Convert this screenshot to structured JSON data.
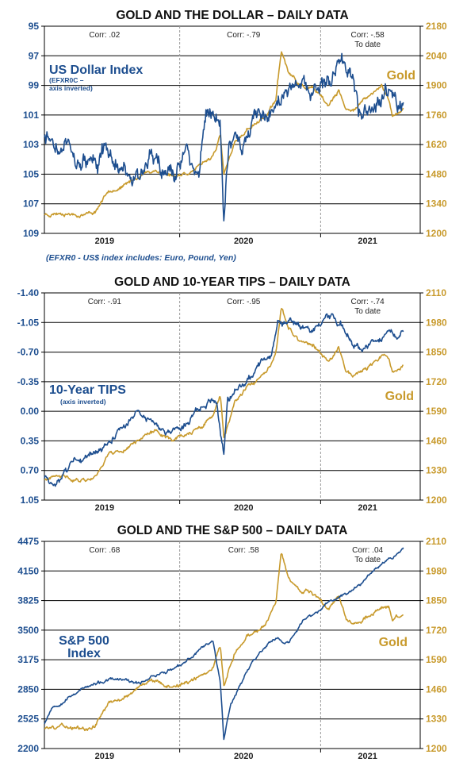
{
  "colors": {
    "blue": "#1d4e8f",
    "gold": "#c89a2c",
    "grid": "#000000",
    "divider": "#999999"
  },
  "chart_data": [
    {
      "type": "line",
      "title": "GOLD AND THE DOLLAR – DAILY DATA",
      "x_ticks": [
        "2019",
        "2020",
        "2021"
      ],
      "left_axis": {
        "ticks": [
          "95",
          "97",
          "99",
          "101",
          "103",
          "105",
          "107",
          "109"
        ],
        "min": 95,
        "max": 109,
        "inverted": true
      },
      "right_axis": {
        "ticks": [
          "2180",
          "2040",
          "1900",
          "1760",
          "1620",
          "1480",
          "1340",
          "1200"
        ],
        "min": 1200,
        "max": 2180
      },
      "correlations": [
        {
          "label": "Corr: .02",
          "sub": ""
        },
        {
          "label": "Corr: -.79",
          "sub": ""
        },
        {
          "label": "Corr: -.58",
          "sub": "To date"
        }
      ],
      "annotations": {
        "left_big": [
          "US Dollar Index"
        ],
        "left_small": [
          "(EFXR0C –",
          "axis inverted)"
        ],
        "right": "Gold"
      },
      "footnote": "(EFXR0 - US$ index includes: Euro, Pound, Yen)",
      "series": [
        {
          "name": "US Dollar Index",
          "axis": "left",
          "color": "#1d4e8f",
          "seed": 11,
          "noise": 0.75,
          "points": [
            [
              0,
              102.8
            ],
            [
              0.05,
              103.5
            ],
            [
              0.1,
              104.1
            ],
            [
              0.16,
              103.6
            ],
            [
              0.22,
              104.5
            ],
            [
              0.3,
              104.0
            ],
            [
              0.36,
              104.6
            ],
            [
              0.4,
              103.6
            ],
            [
              0.43,
              104.6
            ],
            [
              0.45,
              101.0
            ],
            [
              0.47,
              100.6
            ],
            [
              0.49,
              101.5
            ],
            [
              0.5,
              107.5
            ],
            [
              0.515,
              102.0
            ],
            [
              0.55,
              102.8
            ],
            [
              0.59,
              100.5
            ],
            [
              0.62,
              100.8
            ],
            [
              0.66,
              99.6
            ],
            [
              0.71,
              99.2
            ],
            [
              0.76,
              99.3
            ],
            [
              0.8,
              98.9
            ],
            [
              0.83,
              97.2
            ],
            [
              0.85,
              97.7
            ],
            [
              0.875,
              100.2
            ],
            [
              0.9,
              101.1
            ],
            [
              0.95,
              99.2
            ],
            [
              0.97,
              100.5
            ],
            [
              0.985,
              101.6
            ],
            [
              1,
              101.1
            ]
          ]
        },
        {
          "name": "Gold",
          "axis": "right",
          "color": "#c89a2c",
          "seed": 23,
          "noise": 10,
          "points": [
            [
              0,
              1290
            ],
            [
              0.05,
              1300
            ],
            [
              0.1,
              1290
            ],
            [
              0.14,
              1300
            ],
            [
              0.18,
              1410
            ],
            [
              0.22,
              1420
            ],
            [
              0.27,
              1480
            ],
            [
              0.31,
              1500
            ],
            [
              0.36,
              1470
            ],
            [
              0.4,
              1490
            ],
            [
              0.44,
              1520
            ],
            [
              0.47,
              1570
            ],
            [
              0.49,
              1660
            ],
            [
              0.5,
              1480
            ],
            [
              0.53,
              1620
            ],
            [
              0.57,
              1700
            ],
            [
              0.59,
              1720
            ],
            [
              0.62,
              1760
            ],
            [
              0.645,
              1830
            ],
            [
              0.66,
              2065
            ],
            [
              0.68,
              1960
            ],
            [
              0.71,
              1900
            ],
            [
              0.75,
              1880
            ],
            [
              0.79,
              1800
            ],
            [
              0.82,
              1870
            ],
            [
              0.84,
              1780
            ],
            [
              0.86,
              1790
            ],
            [
              0.9,
              1840
            ],
            [
              0.94,
              1900
            ],
            [
              0.96,
              1840
            ],
            [
              0.97,
              1750
            ],
            [
              0.99,
              1770
            ],
            [
              1,
              1790
            ]
          ]
        }
      ]
    },
    {
      "type": "line",
      "title": "GOLD AND 10-YEAR TIPS – DAILY DATA",
      "x_ticks": [
        "2019",
        "2020",
        "2021"
      ],
      "left_axis": {
        "ticks": [
          "-1.40",
          "-1.05",
          "-0.70",
          "-0.35",
          "0.00",
          "0.35",
          "0.70",
          "1.05"
        ],
        "min": -1.4,
        "max": 1.05,
        "inverted": true
      },
      "right_axis": {
        "ticks": [
          "2110",
          "1980",
          "1850",
          "1720",
          "1590",
          "1460",
          "1330",
          "1200"
        ],
        "min": 1200,
        "max": 2110
      },
      "correlations": [
        {
          "label": "Corr: -.91",
          "sub": ""
        },
        {
          "label": "Corr: -.95",
          "sub": ""
        },
        {
          "label": "Corr: -.74",
          "sub": "To date"
        }
      ],
      "annotations": {
        "left_big": [
          "10-Year TIPS"
        ],
        "left_small": [
          "(axis inverted)"
        ],
        "right": "Gold"
      },
      "footnote": "",
      "series": [
        {
          "name": "10-Year TIPS",
          "axis": "left",
          "color": "#1d4e8f",
          "seed": 37,
          "noise": 0.05,
          "points": [
            [
              0,
              0.8
            ],
            [
              0.03,
              0.95
            ],
            [
              0.06,
              0.75
            ],
            [
              0.1,
              0.55
            ],
            [
              0.15,
              0.5
            ],
            [
              0.2,
              0.25
            ],
            [
              0.24,
              0.1
            ],
            [
              0.26,
              -0.05
            ],
            [
              0.3,
              0.15
            ],
            [
              0.35,
              0.25
            ],
            [
              0.4,
              0.1
            ],
            [
              0.43,
              0.0
            ],
            [
              0.46,
              -0.1
            ],
            [
              0.48,
              -0.05
            ],
            [
              0.5,
              0.55
            ],
            [
              0.51,
              -0.1
            ],
            [
              0.55,
              -0.3
            ],
            [
              0.58,
              -0.45
            ],
            [
              0.61,
              -0.6
            ],
            [
              0.63,
              -0.7
            ],
            [
              0.65,
              -1.05
            ],
            [
              0.7,
              -1.05
            ],
            [
              0.75,
              -1.0
            ],
            [
              0.8,
              -1.1
            ],
            [
              0.83,
              -1.0
            ],
            [
              0.86,
              -0.85
            ],
            [
              0.88,
              -0.75
            ],
            [
              0.92,
              -0.8
            ],
            [
              0.96,
              -0.9
            ],
            [
              0.98,
              -0.85
            ],
            [
              1,
              -0.98
            ]
          ]
        },
        {
          "name": "Gold",
          "axis": "right",
          "color": "#c89a2c",
          "seed": 41,
          "noise": 10,
          "points": [
            [
              0,
              1290
            ],
            [
              0.05,
              1300
            ],
            [
              0.1,
              1290
            ],
            [
              0.14,
              1300
            ],
            [
              0.18,
              1410
            ],
            [
              0.22,
              1420
            ],
            [
              0.27,
              1480
            ],
            [
              0.31,
              1500
            ],
            [
              0.36,
              1470
            ],
            [
              0.4,
              1490
            ],
            [
              0.44,
              1520
            ],
            [
              0.47,
              1570
            ],
            [
              0.49,
              1660
            ],
            [
              0.5,
              1480
            ],
            [
              0.53,
              1620
            ],
            [
              0.57,
              1700
            ],
            [
              0.59,
              1720
            ],
            [
              0.62,
              1760
            ],
            [
              0.645,
              1830
            ],
            [
              0.66,
              2045
            ],
            [
              0.68,
              1960
            ],
            [
              0.71,
              1900
            ],
            [
              0.75,
              1880
            ],
            [
              0.79,
              1800
            ],
            [
              0.82,
              1870
            ],
            [
              0.84,
              1780
            ],
            [
              0.86,
              1750
            ],
            [
              0.9,
              1780
            ],
            [
              0.94,
              1830
            ],
            [
              0.96,
              1820
            ],
            [
              0.97,
              1760
            ],
            [
              0.99,
              1780
            ],
            [
              1,
              1790
            ]
          ]
        }
      ]
    },
    {
      "type": "line",
      "title": "GOLD AND THE S&P 500 – DAILY DATA",
      "x_ticks": [
        "2019",
        "2020",
        "2021"
      ],
      "left_axis": {
        "ticks": [
          "4475",
          "4150",
          "3825",
          "3500",
          "3175",
          "2850",
          "2525",
          "2200"
        ],
        "min": 2200,
        "max": 4475,
        "inverted": false
      },
      "right_axis": {
        "ticks": [
          "2110",
          "1980",
          "1850",
          "1720",
          "1590",
          "1460",
          "1330",
          "1200"
        ],
        "min": 1200,
        "max": 2110
      },
      "correlations": [
        {
          "label": "Corr: .68",
          "sub": ""
        },
        {
          "label": "Corr: .58",
          "sub": ""
        },
        {
          "label": "Corr: .04",
          "sub": "To date"
        }
      ],
      "annotations": {
        "left_big": [
          "S&P 500",
          "Index"
        ],
        "left_small": [],
        "right": "Gold"
      },
      "footnote": "",
      "series": [
        {
          "name": "S&P 500 Index",
          "axis": "left",
          "color": "#1d4e8f",
          "seed": 53,
          "noise": 20,
          "points": [
            [
              0,
              2480
            ],
            [
              0.02,
              2650
            ],
            [
              0.06,
              2750
            ],
            [
              0.1,
              2850
            ],
            [
              0.14,
              2900
            ],
            [
              0.18,
              2950
            ],
            [
              0.22,
              2950
            ],
            [
              0.26,
              2900
            ],
            [
              0.3,
              3000
            ],
            [
              0.34,
              3050
            ],
            [
              0.38,
              3100
            ],
            [
              0.41,
              3200
            ],
            [
              0.44,
              3320
            ],
            [
              0.47,
              3380
            ],
            [
              0.49,
              2950
            ],
            [
              0.5,
              2320
            ],
            [
              0.52,
              2700
            ],
            [
              0.55,
              2950
            ],
            [
              0.58,
              3150
            ],
            [
              0.61,
              3300
            ],
            [
              0.63,
              3380
            ],
            [
              0.65,
              3400
            ],
            [
              0.68,
              3350
            ],
            [
              0.72,
              3600
            ],
            [
              0.76,
              3700
            ],
            [
              0.8,
              3820
            ],
            [
              0.84,
              3900
            ],
            [
              0.88,
              4000
            ],
            [
              0.91,
              4150
            ],
            [
              0.94,
              4250
            ],
            [
              0.97,
              4300
            ],
            [
              1,
              4400
            ]
          ]
        },
        {
          "name": "Gold",
          "axis": "right",
          "color": "#c89a2c",
          "seed": 59,
          "noise": 10,
          "points": [
            [
              0,
              1290
            ],
            [
              0.05,
              1300
            ],
            [
              0.1,
              1290
            ],
            [
              0.14,
              1300
            ],
            [
              0.18,
              1410
            ],
            [
              0.22,
              1420
            ],
            [
              0.27,
              1480
            ],
            [
              0.31,
              1500
            ],
            [
              0.36,
              1470
            ],
            [
              0.4,
              1490
            ],
            [
              0.44,
              1520
            ],
            [
              0.47,
              1570
            ],
            [
              0.49,
              1660
            ],
            [
              0.5,
              1480
            ],
            [
              0.53,
              1620
            ],
            [
              0.57,
              1700
            ],
            [
              0.59,
              1720
            ],
            [
              0.62,
              1760
            ],
            [
              0.645,
              1830
            ],
            [
              0.66,
              2060
            ],
            [
              0.68,
              1960
            ],
            [
              0.71,
              1900
            ],
            [
              0.75,
              1880
            ],
            [
              0.79,
              1800
            ],
            [
              0.82,
              1870
            ],
            [
              0.84,
              1780
            ],
            [
              0.86,
              1740
            ],
            [
              0.9,
              1780
            ],
            [
              0.94,
              1830
            ],
            [
              0.96,
              1820
            ],
            [
              0.97,
              1760
            ],
            [
              0.99,
              1780
            ],
            [
              1,
              1790
            ]
          ]
        }
      ]
    }
  ]
}
